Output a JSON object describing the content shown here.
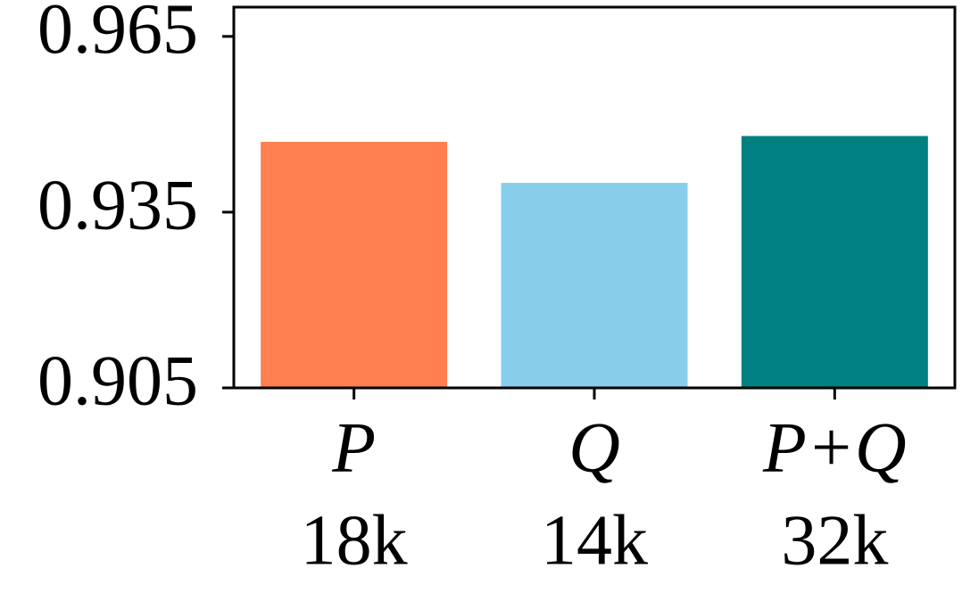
{
  "chart_data": {
    "type": "bar",
    "categories": [
      "P",
      "Q",
      "P+Q"
    ],
    "category_notes": [
      "18k",
      "14k",
      "32k"
    ],
    "values": [
      0.947,
      0.94,
      0.948
    ],
    "colors": [
      "#ff7f50",
      "#87ceeb",
      "#008080"
    ],
    "ylim": [
      0.905,
      0.97
    ],
    "yticks": [
      0.905,
      0.935,
      0.965
    ],
    "grid": false
  }
}
